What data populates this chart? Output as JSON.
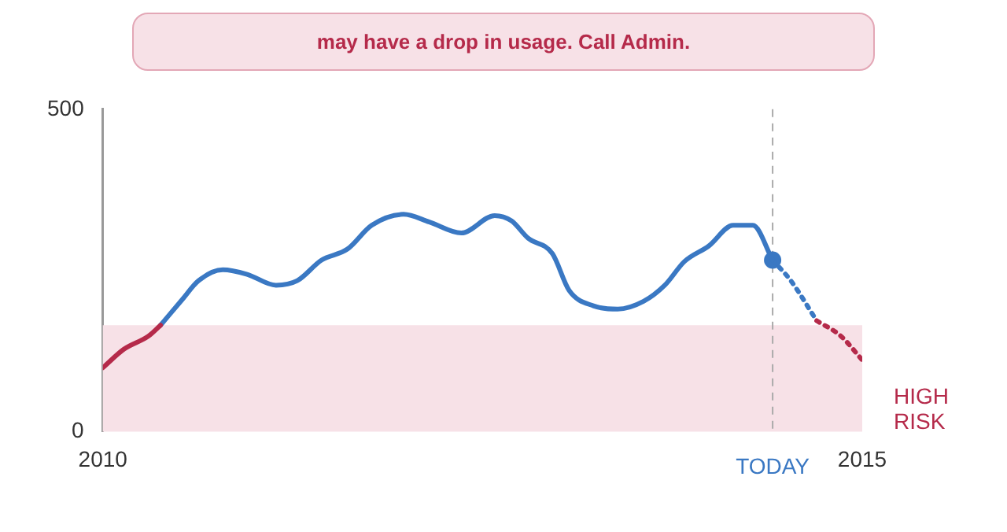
{
  "chart_data": {
    "type": "line",
    "title": "may have a drop in usage. Call Admin.",
    "xlim": [
      2010,
      2015
    ],
    "xticks": [
      2010,
      2015
    ],
    "ylim": [
      0,
      500
    ],
    "yticks": [
      0,
      500
    ],
    "grid": false,
    "legend": false,
    "marker": "none",
    "series": [
      {
        "color": "#b52a4a",
        "line_style": "solid",
        "x": [
          2010,
          2010.14,
          2010.3,
          2010.38
        ],
        "values": [
          99,
          128,
          148,
          165
        ]
      },
      {
        "color": "#3a78c3",
        "line_style": "solid",
        "x": [
          2010.38,
          2010.52,
          2010.63,
          2010.79,
          2010.95,
          2011.14,
          2011.28,
          2011.44,
          2011.61,
          2011.77,
          2011.98,
          2012.15,
          2012.36,
          2012.58,
          2012.69,
          2012.8,
          2012.96,
          2013.07,
          2013.23,
          2013.39,
          2013.56,
          2013.7,
          2013.83,
          2013.99,
          2014.15,
          2014.28,
          2014.41
        ],
        "values": [
          165,
          204,
          234,
          251,
          244,
          227,
          234,
          266,
          283,
          320,
          337,
          325,
          308,
          335,
          327,
          300,
          276,
          219,
          195,
          190,
          202,
          227,
          264,
          288,
          320,
          320,
          266
        ]
      },
      {
        "color": "#3a78c3",
        "line_style": "dotted",
        "x": [
          2014.41,
          2014.53,
          2014.7
        ],
        "values": [
          266,
          234,
          172
        ]
      },
      {
        "color": "#b52a4a",
        "line_style": "dotted",
        "x": [
          2014.7,
          2014.86,
          2015
        ],
        "values": [
          172,
          148,
          111
        ]
      },
      {
        "type": "scatter",
        "color": "#3a78c3",
        "marker": "circle",
        "x": [
          2014.41
        ],
        "values": [
          266
        ]
      }
    ],
    "bands": [
      {
        "axis": "y",
        "from": 0,
        "to": 165,
        "label": "HIGH RISK",
        "color": "#f7e1e7"
      }
    ],
    "ref_lines": [
      {
        "axis": "x",
        "value": 2014.41,
        "label": "TODAY",
        "color": "#aaaaaa",
        "line_style": "dashed"
      }
    ]
  }
}
